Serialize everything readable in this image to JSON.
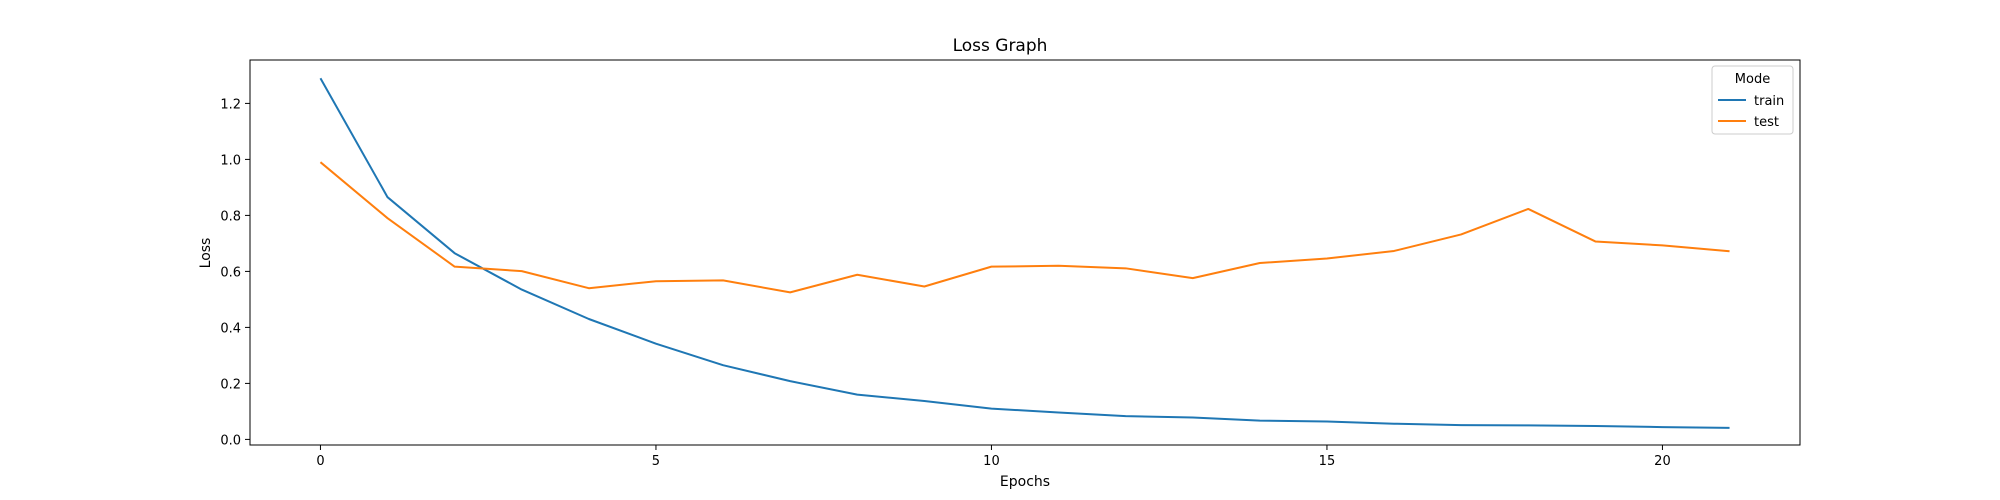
{
  "chart_data": {
    "type": "line",
    "title": "Loss Graph",
    "xlabel": "Epochs",
    "ylabel": "Loss",
    "xlim": [
      -1.05,
      22.05
    ],
    "ylim": [
      -0.02,
      1.355
    ],
    "xticks": [
      0,
      5,
      10,
      15,
      20
    ],
    "yticks": [
      0.0,
      0.2,
      0.4,
      0.6,
      0.8,
      1.0,
      1.2
    ],
    "grid": false,
    "legend": {
      "title": "Mode",
      "placement": "top-right"
    },
    "x": [
      0,
      1,
      2,
      3,
      4,
      5,
      6,
      7,
      8,
      9,
      10,
      11,
      12,
      13,
      14,
      15,
      16,
      17,
      18,
      19,
      20,
      21
    ],
    "series": [
      {
        "name": "train",
        "color": "#1f77b4",
        "values": [
          1.29,
          0.865,
          0.665,
          0.535,
          0.43,
          0.342,
          0.265,
          0.208,
          0.16,
          0.137,
          0.11,
          0.096,
          0.083,
          0.078,
          0.067,
          0.064,
          0.056,
          0.051,
          0.05,
          0.048,
          0.044,
          0.041
        ]
      },
      {
        "name": "test",
        "color": "#ff7f0e",
        "values": [
          0.99,
          0.79,
          0.617,
          0.601,
          0.54,
          0.565,
          0.568,
          0.525,
          0.588,
          0.546,
          0.617,
          0.62,
          0.611,
          0.576,
          0.63,
          0.646,
          0.673,
          0.732,
          0.823,
          0.707,
          0.693,
          0.672
        ]
      }
    ]
  }
}
